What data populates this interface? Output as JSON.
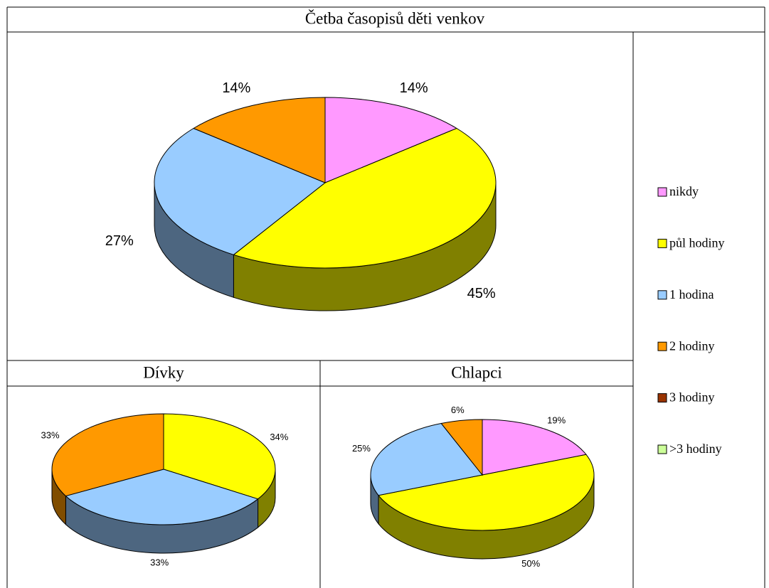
{
  "chart_data": [
    {
      "type": "pie",
      "title": "Četba časopisů děti venkov",
      "categories": [
        "nikdy",
        "půl hodiny",
        "1 hodina",
        "2 hodiny"
      ],
      "values": [
        14,
        45,
        27,
        14
      ],
      "value_labels": [
        "14%",
        "45%",
        "27%",
        "14%"
      ],
      "colors": [
        "#ff99ff",
        "#ffff00",
        "#99ccff",
        "#ff9900"
      ]
    },
    {
      "type": "pie",
      "title": "Dívky",
      "categories": [
        "půl hodiny",
        "1 hodina",
        "2 hodiny"
      ],
      "values": [
        34,
        33,
        33
      ],
      "value_labels": [
        "34%",
        "33%",
        "33%"
      ],
      "colors": [
        "#ffff00",
        "#99ccff",
        "#ff9900"
      ]
    },
    {
      "type": "pie",
      "title": "Chlapci",
      "categories": [
        "nikdy",
        "půl hodiny",
        "1 hodina",
        "2 hodiny"
      ],
      "values": [
        19,
        50,
        25,
        6
      ],
      "value_labels": [
        "19%",
        "50%",
        "25%",
        "6%"
      ],
      "colors": [
        "#ff99ff",
        "#ffff00",
        "#99ccff",
        "#ff9900"
      ]
    }
  ],
  "legend": [
    {
      "name": "nikdy",
      "color": "#ff99ff"
    },
    {
      "name": "půl hodiny",
      "color": "#ffff00"
    },
    {
      "name": "1 hodina",
      "color": "#99ccff"
    },
    {
      "name": "2 hodiny",
      "color": "#ff9900"
    },
    {
      "name": "3 hodiny",
      "color": "#993300"
    },
    {
      "name": ">3 hodiny",
      "color": "#ccff99"
    }
  ]
}
